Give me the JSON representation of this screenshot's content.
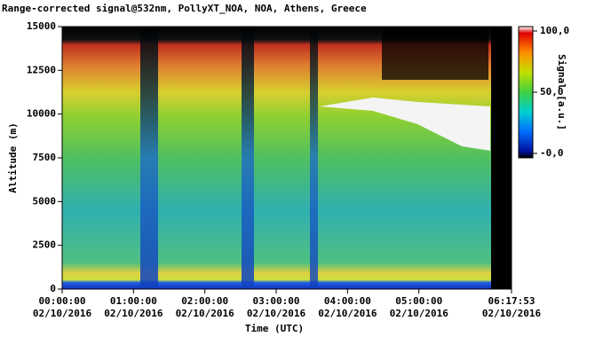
{
  "chart_data": {
    "type": "heatmap",
    "title": "Range-corrected signal@532nm, PollyXT_NOA, NOA, Athens, Greece",
    "xlabel": "Time (UTC)",
    "ylabel": "Altitude (m)",
    "colorbar_label": "Signal [a.u.]",
    "xlim": [
      0,
      6.29806
    ],
    "xticks": [
      {
        "value": 0,
        "label": "00:00:00"
      },
      {
        "value": 1,
        "label": "01:00:00"
      },
      {
        "value": 2,
        "label": "02:00:00"
      },
      {
        "value": 3,
        "label": "03:00:00"
      },
      {
        "value": 4,
        "label": "04:00:00"
      },
      {
        "value": 5,
        "label": "05:00:00"
      },
      {
        "value": 6.29806,
        "label": "06:17:53"
      }
    ],
    "xtick_dates": [
      "02/10/2016",
      "02/10/2016",
      "02/10/2016",
      "02/10/2016",
      "02/10/2016",
      "02/10/2016",
      "02/10/2016"
    ],
    "ylim": [
      0,
      15000
    ],
    "yticks": [
      0,
      2500,
      5000,
      7500,
      10000,
      12500,
      15000
    ],
    "clim": [
      0,
      100
    ],
    "cticks": [
      {
        "value": 100,
        "label": "100,0"
      },
      {
        "value": 50,
        "label": "50,0"
      },
      {
        "value": 0,
        "label": "-0,0"
      }
    ]
  }
}
